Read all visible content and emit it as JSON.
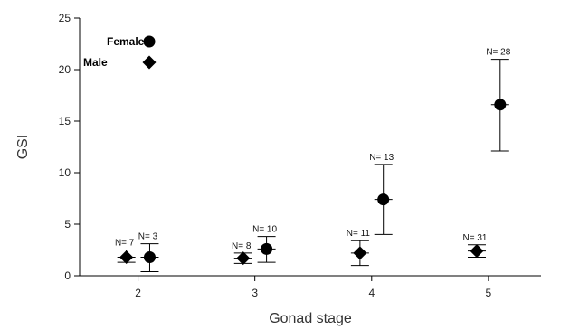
{
  "chart_data": {
    "type": "scatter",
    "xlabel": "Gonad stage",
    "ylabel": "GSI",
    "x_ticks": [
      "2",
      "3",
      "4",
      "5"
    ],
    "y_ticks": [
      0,
      5,
      10,
      15,
      20,
      25
    ],
    "ylim": [
      0,
      25
    ],
    "xlim": [
      1.5,
      5.45
    ],
    "grid": false,
    "legend_position": "top-left",
    "series": [
      {
        "name": "Female",
        "marker": "circle",
        "color": "#000000",
        "points": [
          {
            "x": 2.1,
            "y": 1.8,
            "low": 0.4,
            "high": 3.1,
            "n_label": "N= 3"
          },
          {
            "x": 3.1,
            "y": 2.6,
            "low": 1.3,
            "high": 3.8,
            "n_label": "N= 10"
          },
          {
            "x": 4.1,
            "y": 7.4,
            "low": 4.0,
            "high": 10.8,
            "n_label": "N= 13"
          },
          {
            "x": 5.1,
            "y": 16.6,
            "low": 12.1,
            "high": 21.0,
            "n_label": "N= 28"
          }
        ]
      },
      {
        "name": "Male",
        "marker": "diamond",
        "color": "#000000",
        "points": [
          {
            "x": 1.9,
            "y": 1.8,
            "low": 1.3,
            "high": 2.5,
            "n_label": "N= 7"
          },
          {
            "x": 2.9,
            "y": 1.7,
            "low": 1.2,
            "high": 2.2,
            "n_label": "N= 8"
          },
          {
            "x": 3.9,
            "y": 2.2,
            "low": 1.0,
            "high": 3.4,
            "n_label": "N= 11"
          },
          {
            "x": 4.9,
            "y": 2.4,
            "low": 1.8,
            "high": 3.0,
            "n_label": "N= 31"
          }
        ]
      }
    ]
  }
}
